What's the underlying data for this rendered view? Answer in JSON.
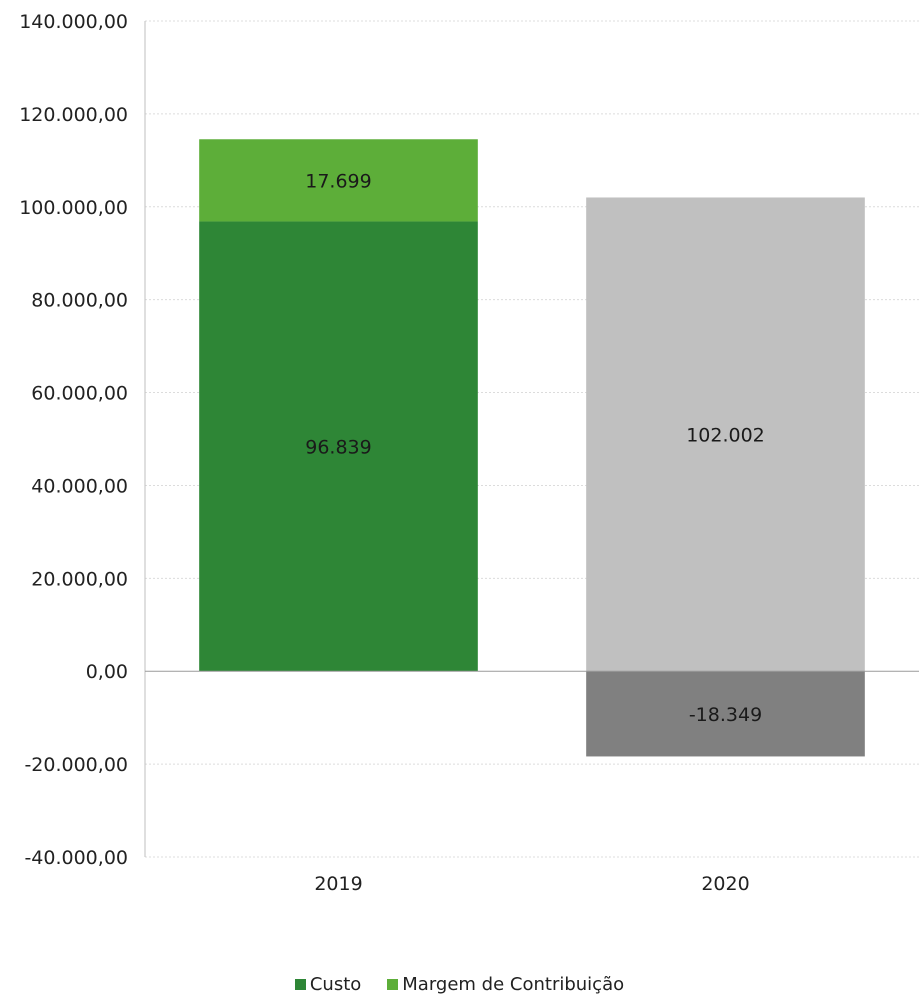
{
  "chart_data": {
    "type": "bar",
    "stacked": true,
    "categories": [
      "2019",
      "2020"
    ],
    "series": [
      {
        "name": "Custo",
        "color": "#2e8636",
        "points": [
          {
            "category": "2019",
            "value": 96839,
            "label": "96.839",
            "color": "#2e8636"
          },
          {
            "category": "2020",
            "value": 102002,
            "label": "102.002",
            "color": "#c0c0c0"
          }
        ]
      },
      {
        "name": "Margem de Contribuição",
        "color": "#5dae39",
        "points": [
          {
            "category": "2019",
            "value": 17699,
            "label": "17.699",
            "color": "#5dae39"
          },
          {
            "category": "2020",
            "value": -18349,
            "label": "-18.349",
            "color": "#808080"
          }
        ]
      }
    ],
    "ylim": [
      -40000,
      140000
    ],
    "yticks": [
      {
        "value": 140000,
        "label": "140.000,00"
      },
      {
        "value": 120000,
        "label": "120.000,00"
      },
      {
        "value": 100000,
        "label": "100.000,00"
      },
      {
        "value": 80000,
        "label": "80.000,00"
      },
      {
        "value": 60000,
        "label": "60.000,00"
      },
      {
        "value": 40000,
        "label": "40.000,00"
      },
      {
        "value": 20000,
        "label": "20.000,00"
      },
      {
        "value": 0,
        "label": "0,00"
      },
      {
        "value": -20000,
        "label": "-20.000,00"
      },
      {
        "value": -40000,
        "label": "-40.000,00"
      }
    ],
    "grid": true,
    "legend_position": "bottom"
  }
}
